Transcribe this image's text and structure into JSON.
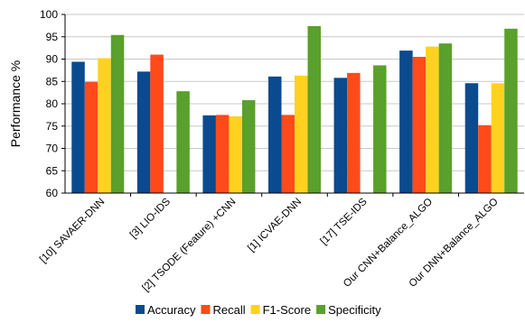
{
  "chart_data": {
    "type": "bar",
    "ylabel": "Performance %",
    "ylim": [
      60,
      100
    ],
    "yticks": [
      60,
      65,
      70,
      75,
      80,
      85,
      90,
      95,
      100
    ],
    "grid": true,
    "legend_position": "bottom",
    "categories": [
      "[10] SAVAER-DNN",
      "[3] LIO-IDS",
      "[2] TSODE (Feature) +CNN",
      "[1] ICVAE-DNN",
      "[17] TSE-IDS",
      "Our CNN+Balance_ALGO",
      "Our DNN+Balance_ALGO"
    ],
    "series": [
      {
        "name": "Accuracy",
        "color": "#0a4a8f",
        "values": [
          89.4,
          87.2,
          77.4,
          86.1,
          85.8,
          91.9,
          84.6
        ]
      },
      {
        "name": "Recall",
        "color": "#ff4a1a",
        "values": [
          84.9,
          91.0,
          77.5,
          77.5,
          86.9,
          90.5,
          75.2
        ]
      },
      {
        "name": "F1-Score",
        "color": "#ffd21f",
        "values": [
          90.2,
          null,
          77.2,
          86.3,
          null,
          92.8,
          84.6
        ]
      },
      {
        "name": "Specificity",
        "color": "#5aa02c",
        "values": [
          95.4,
          82.8,
          80.8,
          97.4,
          88.6,
          93.5,
          96.8
        ]
      }
    ]
  }
}
